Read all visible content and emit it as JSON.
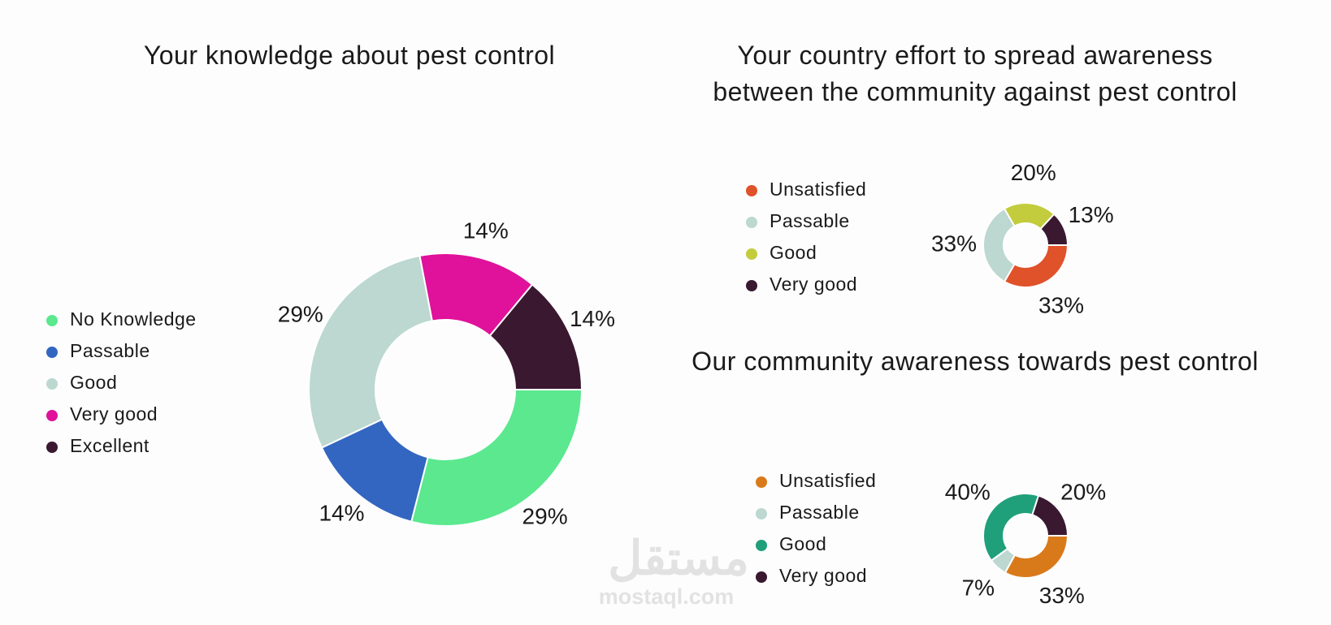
{
  "chart_data": [
    {
      "type": "donut",
      "title": "Your knowledge about pest control",
      "categories": [
        "No Knowledge",
        "Passable",
        "Good",
        "Very good",
        "Excellent"
      ],
      "values": [
        29,
        14,
        29,
        14,
        14
      ],
      "value_labels": [
        "29%",
        "14%",
        "29%",
        "14%",
        "14%"
      ],
      "colors": [
        "#5be88f",
        "#3366c0",
        "#bcd8d0",
        "#e0119a",
        "#3a1830"
      ]
    },
    {
      "type": "donut",
      "title": "Your country effort to spread awareness between the community against pest control",
      "categories": [
        "Unsatisfied",
        "Passable",
        "Good",
        "Very good"
      ],
      "values": [
        33,
        33,
        20,
        13
      ],
      "value_labels": [
        "33%",
        "33%",
        "20%",
        "13%"
      ],
      "colors": [
        "#e0522a",
        "#bcd8d0",
        "#c3cc3c",
        "#3a1830"
      ]
    },
    {
      "type": "donut",
      "title": "Our community awareness towards pest control",
      "categories": [
        "Unsatisfied",
        "Passable",
        "Good",
        "Very good"
      ],
      "values": [
        33,
        7,
        40,
        20
      ],
      "value_labels": [
        "33%",
        "7%",
        "40%",
        "20%"
      ],
      "colors": [
        "#d97a1a",
        "#bcd8d0",
        "#1fa07a",
        "#3a1830"
      ]
    }
  ],
  "watermark": [
    "مستقل",
    "mostaql.com"
  ]
}
